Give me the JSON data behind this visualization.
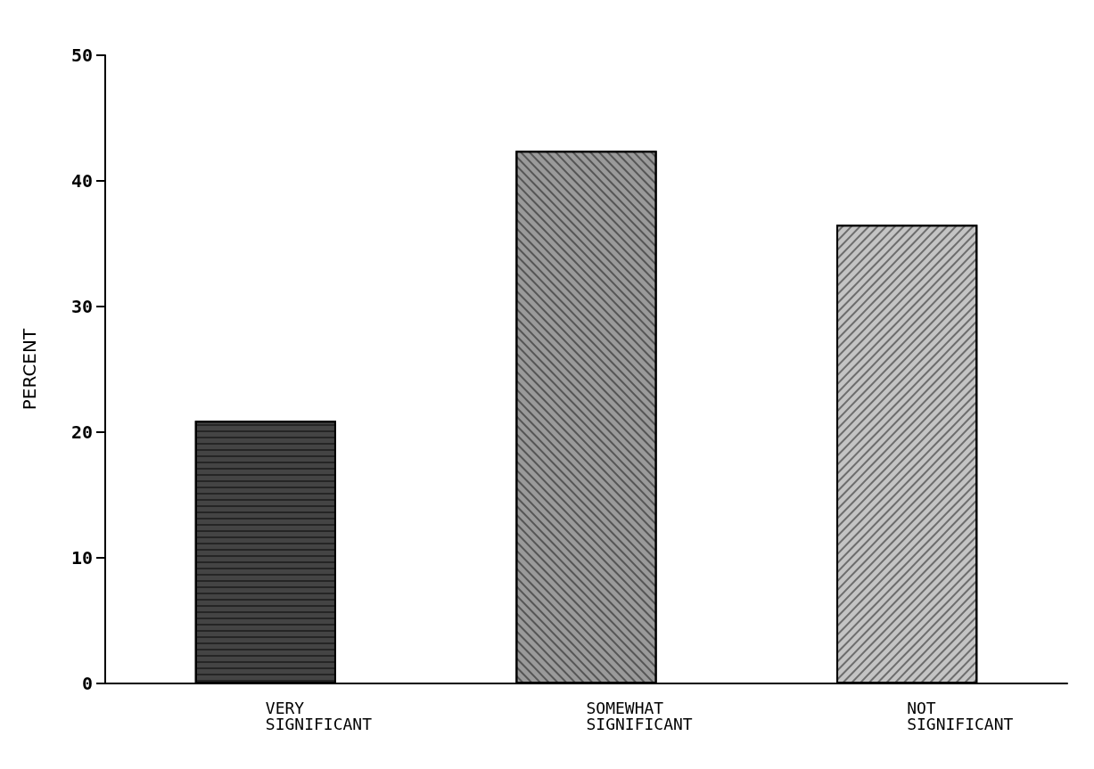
{
  "chart_data": {
    "type": "bar",
    "ylabel": "PERCENT",
    "categories": [
      "VERY\nSIGNIFICANT",
      "SOMEWHAT\nSIGNIFICANT",
      "NOT\nSIGNIFICANT"
    ],
    "values": [
      20.9,
      42.4,
      36.5
    ],
    "colors": [
      "#444444",
      "#9a9a9a",
      "#c4c4c4"
    ],
    "ylim": [
      0,
      50
    ],
    "yticks": [
      0,
      10,
      20,
      30,
      40,
      50
    ],
    "grid": false
  }
}
